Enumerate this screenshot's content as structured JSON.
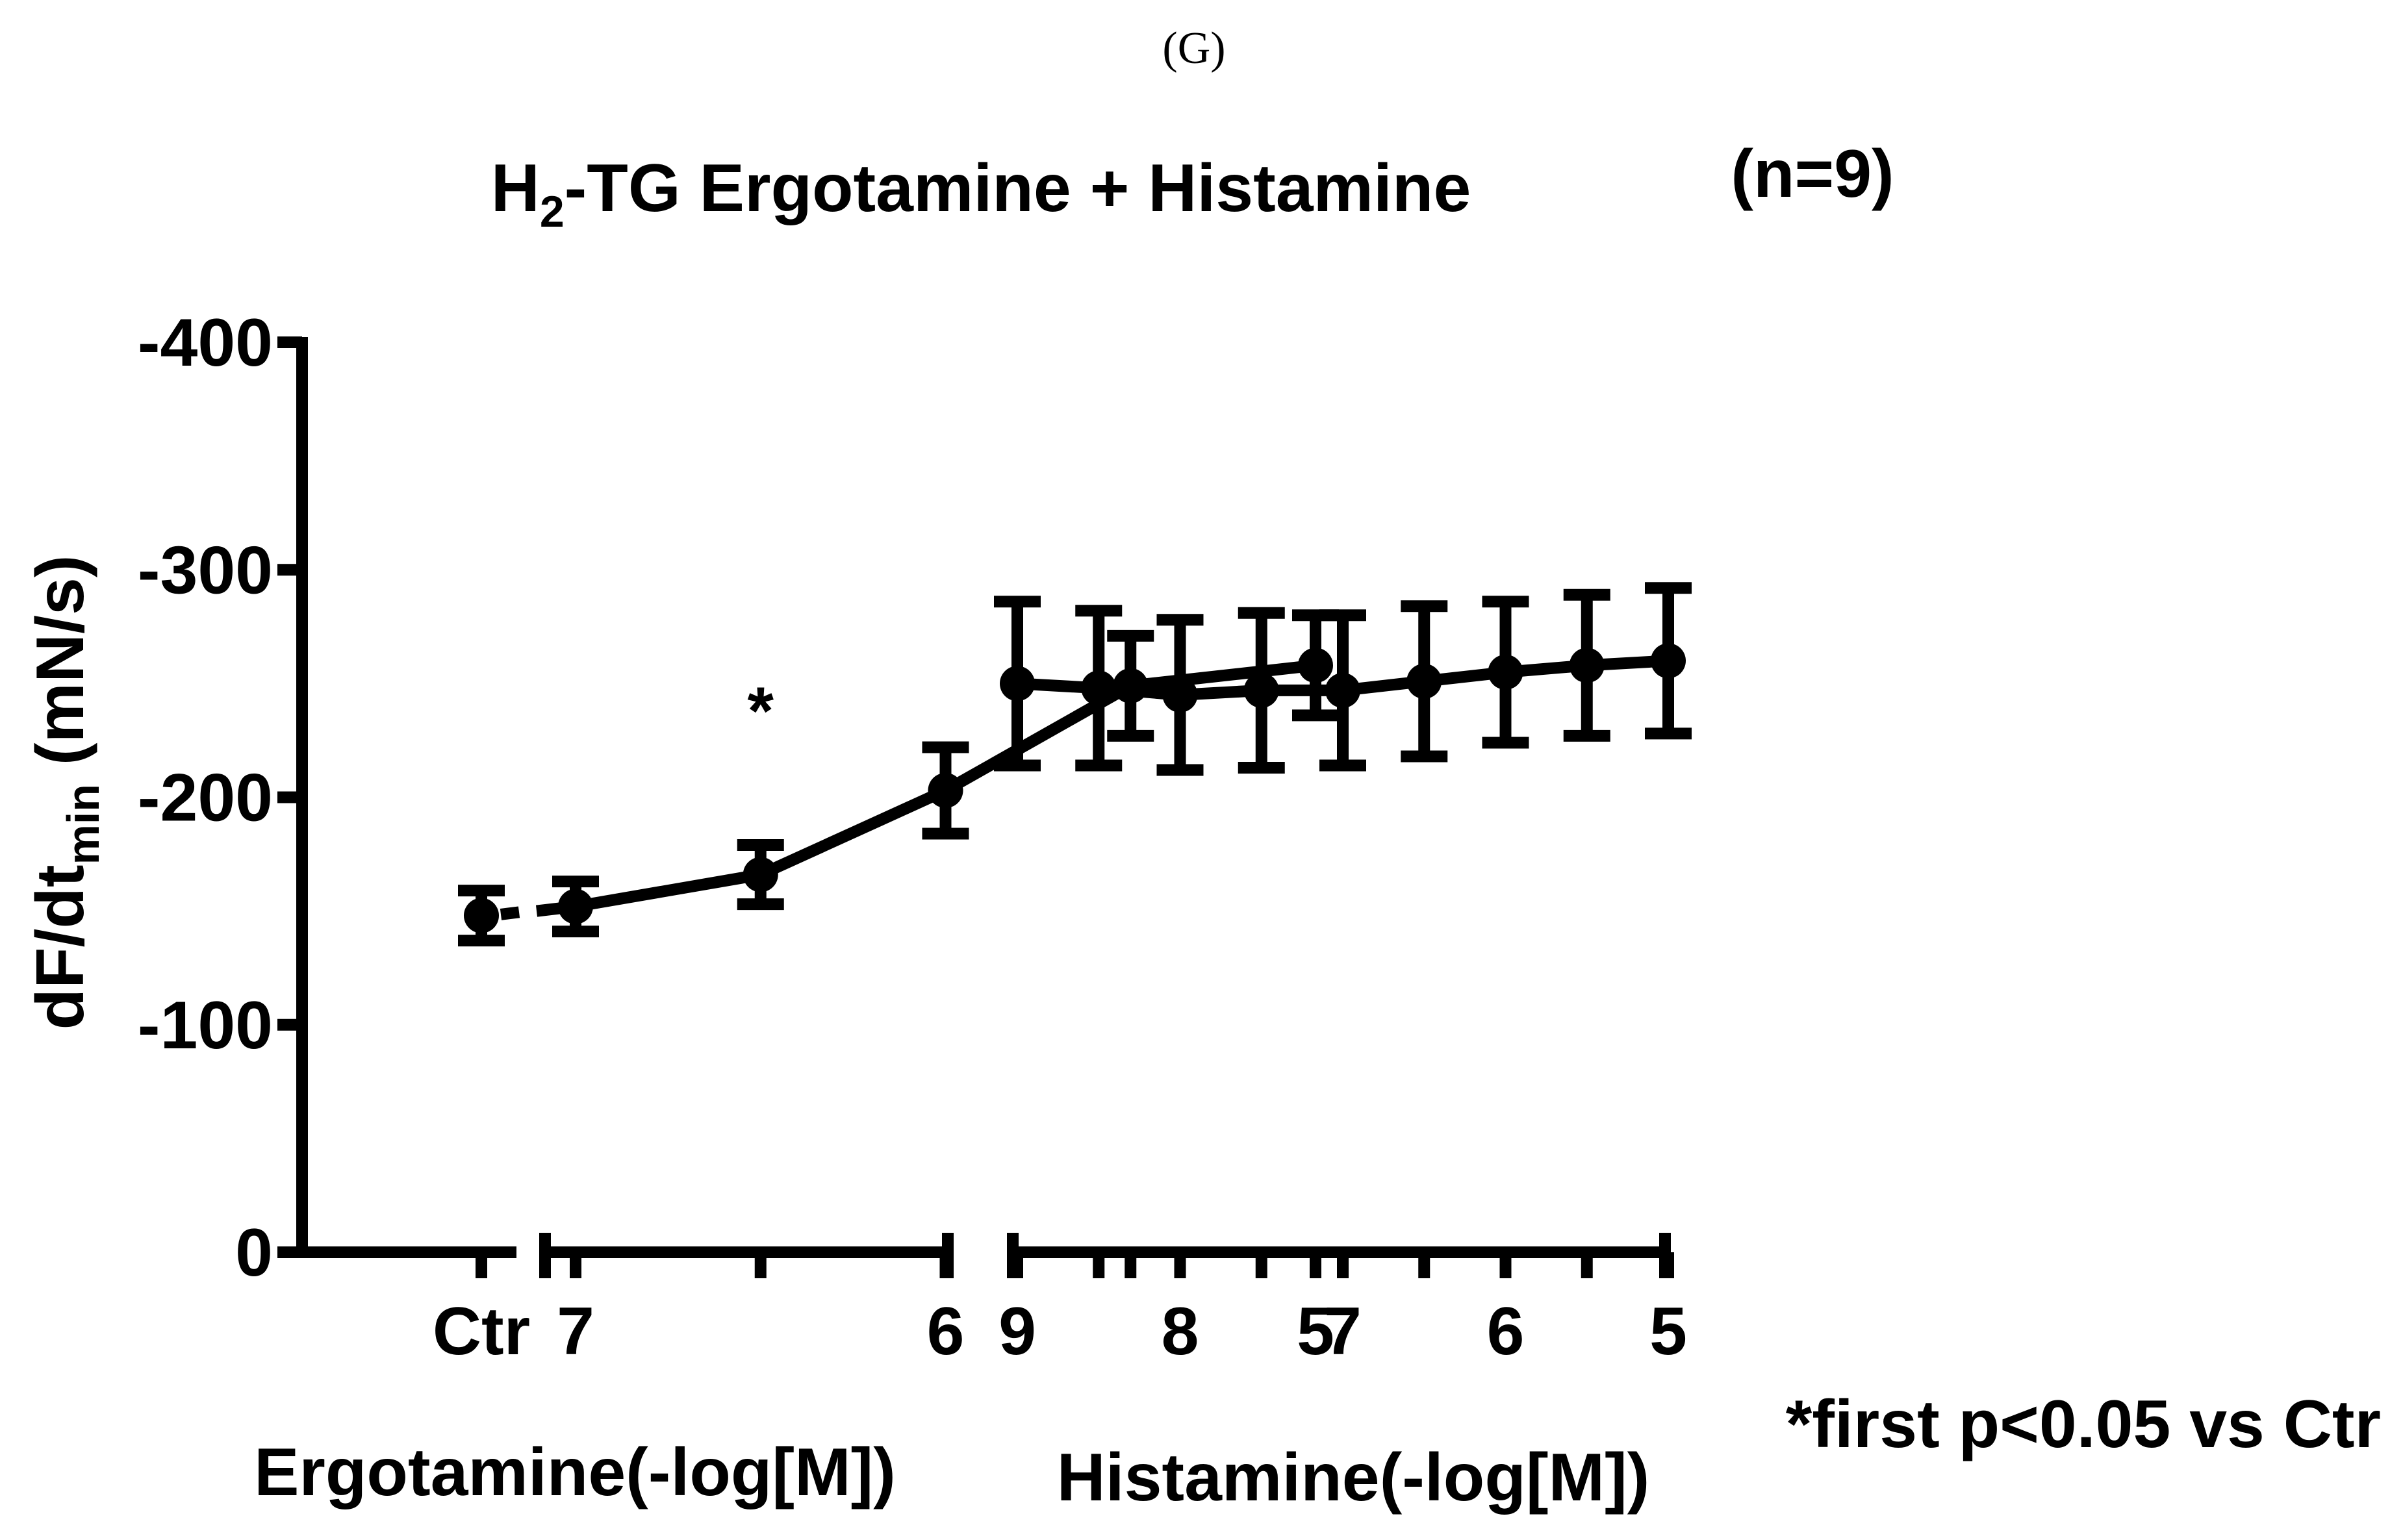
{
  "panel_label": "(G)",
  "chart_data": {
    "type": "line",
    "title_main": "H",
    "title_sub": "2",
    "title_rest": "-TG Ergotamine + Histamine",
    "n_label": "(n=9)",
    "ylabel_main": "dF/dt",
    "ylabel_sub": "min",
    "ylabel_unit": " (mN/s)",
    "ylim": [
      0,
      400
    ],
    "y_ticks": [
      0,
      100,
      200,
      300,
      400
    ],
    "y_tick_labels": [
      "0",
      "-100",
      "-200",
      "-300",
      "-400"
    ],
    "annotation": "*",
    "footnote": "*first p<0.05 vs Ctr",
    "color": "#000000",
    "segments": [
      {
        "name": "ctr",
        "x_labels": [
          {
            "pos": 0,
            "text": "Ctr"
          }
        ],
        "points": [
          {
            "x": 0,
            "y": 148,
            "err": 11
          }
        ]
      },
      {
        "name": "ergotamine",
        "xlabel": "Ergotamine(-log[M])",
        "x_labels": [
          {
            "pos": 7,
            "text": "7"
          },
          {
            "pos": 6,
            "text": "6"
          },
          {
            "pos": 5,
            "text": "5"
          }
        ],
        "ticks": [
          7,
          6.5,
          6,
          5.5,
          5
        ],
        "points": [
          {
            "x": 7,
            "y": 152,
            "err": 11
          },
          {
            "x": 6.5,
            "y": 166,
            "err": 13
          },
          {
            "x": 6,
            "y": 203,
            "err": 19
          },
          {
            "x": 5.5,
            "y": 249,
            "err": 22
          },
          {
            "x": 5,
            "y": 258,
            "err": 22
          }
        ]
      },
      {
        "name": "histamine",
        "xlabel": "Histamine(-log[M])",
        "x_labels": [
          {
            "pos": 9,
            "text": "9"
          },
          {
            "pos": 8,
            "text": "8"
          },
          {
            "pos": 7,
            "text": "7"
          },
          {
            "pos": 6,
            "text": "6"
          },
          {
            "pos": 5,
            "text": "5"
          }
        ],
        "ticks": [
          9,
          8.5,
          8,
          7.5,
          7,
          6.5,
          6,
          5.5,
          5
        ],
        "points": [
          {
            "x": 9,
            "y": 250,
            "err": 36
          },
          {
            "x": 8.5,
            "y": 248,
            "err": 34
          },
          {
            "x": 8,
            "y": 245,
            "err": 33
          },
          {
            "x": 7.5,
            "y": 247,
            "err": 34
          },
          {
            "x": 7,
            "y": 247,
            "err": 33
          },
          {
            "x": 6.5,
            "y": 251,
            "err": 33
          },
          {
            "x": 6,
            "y": 255,
            "err": 31
          },
          {
            "x": 5.5,
            "y": 258,
            "err": 31
          },
          {
            "x": 5,
            "y": 260,
            "err": 32
          }
        ]
      }
    ]
  }
}
